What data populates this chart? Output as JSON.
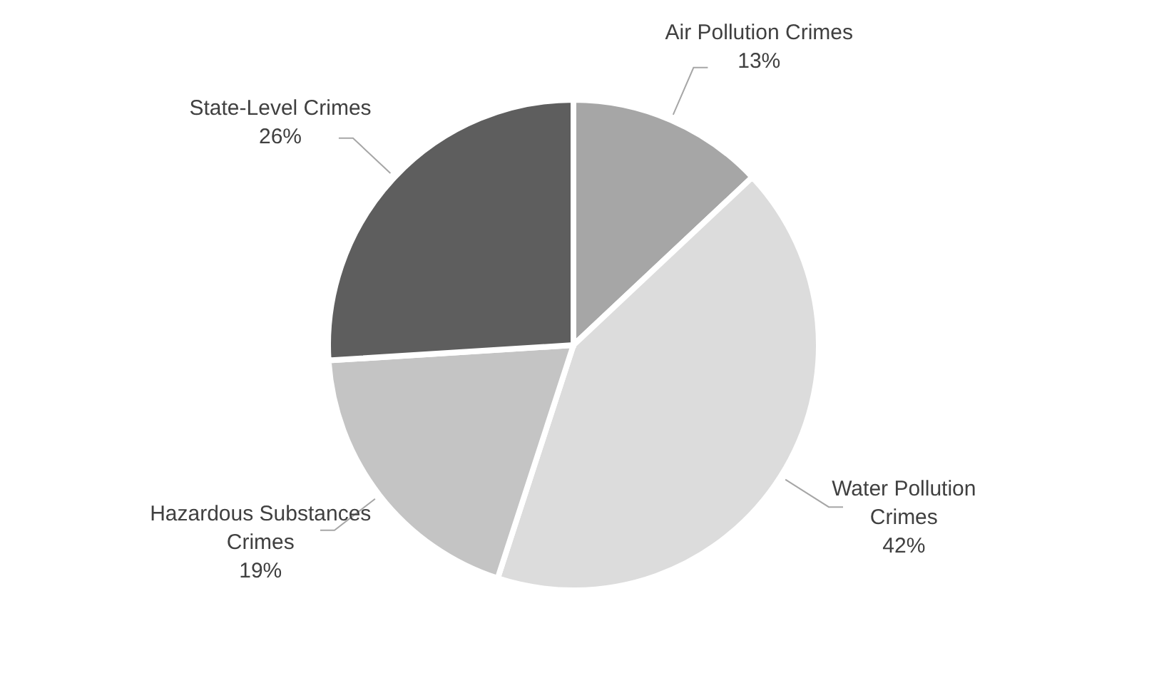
{
  "chart_data": {
    "type": "pie",
    "categories": [
      "Air Pollution Crimes",
      "Water Pollution Crimes",
      "Hazardous Substances Crimes",
      "State-Level Crimes"
    ],
    "values": [
      13,
      42,
      19,
      26
    ],
    "colors": [
      "#a6a6a6",
      "#dcdcdc",
      "#c4c4c4",
      "#5e5e5e"
    ],
    "value_labels": [
      "13%",
      "42%",
      "19%",
      "26%"
    ],
    "legend": false
  }
}
